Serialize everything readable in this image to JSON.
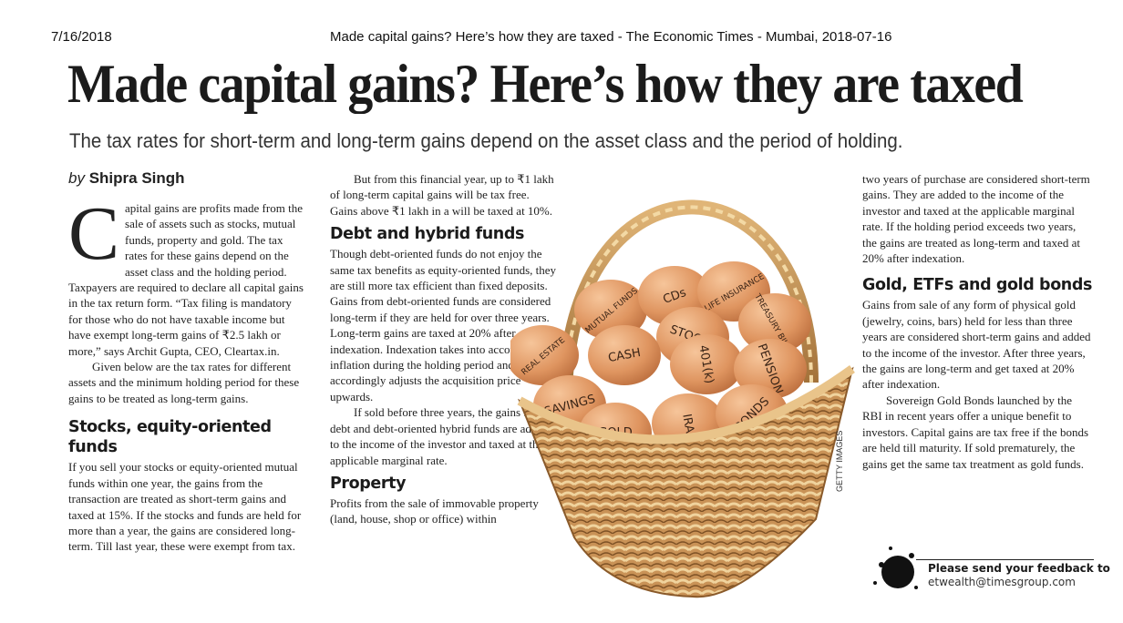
{
  "header": {
    "date": "7/16/2018",
    "source": "Made capital gains? Here’s how they are taxed - The Economic Times - Mumbai, 2018-07-16"
  },
  "article": {
    "headline": "Made capital gains? Here’s how they are taxed",
    "subtitle": "The tax rates for short-term and long-term gains depend on the asset class and the period of holding.",
    "byline_prefix": "by",
    "author": "Shipra Singh",
    "dropcap": "C",
    "intro": "apital gains are profits made from the sale of assets such as stocks, mutual funds, property and gold. The tax rates for these gains depend on the asset class and the holding period. Taxpayers are required to declare all capital gains in the tax return form. “Tax filing is mandatory for those who do not have taxable income but have exempt long-term gains of ₹2.5 lakh or more,” says Archit Gupta, CEO, Cleartax.in.",
    "intro2": "Given below are the tax rates for different assets and the minimum holding period for these gains to be treated as long-term gains.",
    "sections": [
      {
        "heading": "Stocks, equity-oriented funds",
        "paragraphs": [
          "If you sell your stocks or equity-oriented mutual funds within one year, the gains from the transaction are treated as short-term gains and taxed at 15%. If the stocks and funds are held for more than a year, the gains are considered long-term. Till last year, these were exempt from tax.",
          "But from this financial year, up to ₹1 lakh of long-term capital gains will be tax free. Gains above ₹1 lakh in a will be taxed at 10%."
        ]
      },
      {
        "heading": "Debt and hybrid funds",
        "paragraphs": [
          "Though debt-oriented funds do not enjoy the same tax benefits as equity-oriented funds, they are still more tax efficient than fixed deposits. Gains from debt-oriented funds are considered long-term if they are held for over three years. Long-term gains are taxed at 20% after indexation. Indexation takes into account the inflation during the holding period and accordingly adjusts the acquisition price upwards.",
          "If sold before three years, the gains from debt and debt-oriented hybrid funds are added to the income of the investor and taxed at the applicable marginal rate."
        ]
      },
      {
        "heading": "Property",
        "paragraphs": [
          "Profits from the sale of immovable property (land, house, shop or office) within",
          "two years of purchase are considered short-term gains. They are added to the income of the investor and taxed at the applicable marginal rate. If the holding period exceeds two years, the gains are treated as long-term and taxed at 20% after indexation."
        ]
      },
      {
        "heading": "Gold, ETFs and gold bonds",
        "paragraphs": [
          "Gains from sale of any form of physical gold (jewelry, coins, bars) held for less than three years are considered short-term gains and added to the income of the investor. After three years, the gains are long-term and get taxed at 20% after indexation.",
          "Sovereign Gold Bonds launched by the RBI in recent years offer a unique benefit to investors. Capital gains are tax free if the bonds are held till maturity. If sold prematurely, the gains get the same tax treatment as gold funds."
        ]
      }
    ]
  },
  "photo": {
    "credit": "GETTY IMAGES",
    "egg_labels": [
      "REAL ESTATE",
      "MUTUAL FUNDS",
      "CDs",
      "LIFE INSURANCE",
      "TREASURY BILLS",
      "STOCKS",
      "CASH",
      "401(k)",
      "PENSION",
      "SAVINGS",
      "GOLD",
      "IRA",
      "BONDS"
    ]
  },
  "footer": {
    "feedback_label": "Please send your feedback to",
    "email": "etwealth@timesgroup.com"
  }
}
